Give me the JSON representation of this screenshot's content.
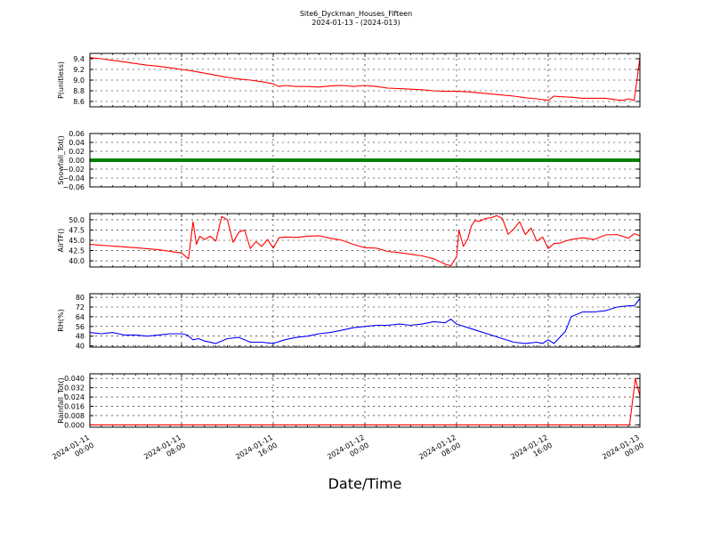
{
  "title_line1": "Site6_Dyckman_Houses_Fifteen",
  "title_line2": "2024-01-13 - (2024-013)",
  "xlabel": "Date/Time",
  "x_ticks": [
    {
      "x": 0,
      "line1": "2024-01-11",
      "line2": "00:00"
    },
    {
      "x": 8,
      "line1": "2024-01-11",
      "line2": "08:00"
    },
    {
      "x": 16,
      "line1": "2024-01-11",
      "line2": "16:00"
    },
    {
      "x": 24,
      "line1": "2024-01-12",
      "line2": "00:00"
    },
    {
      "x": 32,
      "line1": "2024-01-12",
      "line2": "08:00"
    },
    {
      "x": 40,
      "line1": "2024-01-12",
      "line2": "16:00"
    },
    {
      "x": 48,
      "line1": "2024-01-13",
      "line2": "00:00"
    }
  ],
  "chart_data": [
    {
      "type": "line",
      "ylabel": "P(unitless)",
      "color": "#ff0000",
      "ylim": [
        8.5,
        9.5
      ],
      "yticks": [
        8.6,
        8.8,
        9.0,
        9.2,
        9.4
      ],
      "ytick_labels": [
        "8.6",
        "8.8",
        "9.0",
        "9.2",
        "9.4"
      ],
      "xlim": [
        0,
        48
      ],
      "series": [
        {
          "x": [
            0,
            1,
            2,
            3,
            4,
            5,
            6,
            7,
            8,
            9,
            10,
            11,
            12,
            13,
            14,
            15,
            16,
            16.5,
            17,
            18,
            19,
            20,
            21,
            22,
            23,
            24,
            25,
            26,
            27,
            28,
            29,
            30,
            31,
            32,
            33,
            34,
            35,
            36,
            37,
            38,
            39,
            40,
            40.5,
            41,
            42,
            43,
            44,
            45,
            46,
            46.5,
            47,
            47.5,
            48
          ],
          "y": [
            9.42,
            9.4,
            9.37,
            9.34,
            9.31,
            9.28,
            9.26,
            9.23,
            9.2,
            9.17,
            9.13,
            9.09,
            9.05,
            9.02,
            9.0,
            8.97,
            8.93,
            8.88,
            8.9,
            8.88,
            8.88,
            8.87,
            8.89,
            8.9,
            8.88,
            8.9,
            8.88,
            8.85,
            8.84,
            8.83,
            8.82,
            8.8,
            8.79,
            8.79,
            8.78,
            8.76,
            8.74,
            8.72,
            8.7,
            8.67,
            8.65,
            8.62,
            8.7,
            8.69,
            8.68,
            8.66,
            8.66,
            8.66,
            8.63,
            8.62,
            8.65,
            8.62,
            9.42
          ]
        }
      ]
    },
    {
      "type": "line",
      "ylabel": "Snowfall_Tot()",
      "color": "#008000",
      "ylim": [
        -0.06,
        0.06
      ],
      "yticks": [
        -0.06,
        -0.04,
        -0.02,
        0.0,
        0.02,
        0.04,
        0.06
      ],
      "ytick_labels": [
        "−0.06",
        "−0.04",
        "−0.02",
        "0.00",
        "0.02",
        "0.04",
        "0.06"
      ],
      "xlim": [
        0,
        48
      ],
      "series": [
        {
          "x": [
            0,
            48
          ],
          "y": [
            0.0,
            0.0
          ]
        }
      ]
    },
    {
      "type": "line",
      "ylabel": "AirTF()",
      "color": "#ff0000",
      "ylim": [
        38.5,
        51.5
      ],
      "yticks": [
        40.0,
        42.5,
        45.0,
        47.5,
        50.0
      ],
      "ytick_labels": [
        "40.0",
        "42.5",
        "45.0",
        "47.5",
        "50.0"
      ],
      "xlim": [
        0,
        48
      ],
      "series": [
        {
          "x": [
            0,
            2,
            4,
            6,
            8,
            8.6,
            9,
            9.3,
            9.6,
            10,
            10.5,
            11,
            11.5,
            12,
            12.5,
            13,
            13.5,
            14,
            14.5,
            15,
            15.5,
            16,
            16.5,
            17,
            18,
            19,
            20,
            21,
            22,
            23,
            24,
            25,
            26,
            27,
            28,
            29,
            30,
            31,
            31.5,
            32,
            32.2,
            32.6,
            33,
            33.3,
            33.6,
            34,
            34.5,
            35,
            35.5,
            36,
            36.5,
            37,
            37.5,
            38,
            38.5,
            39,
            39.5,
            40,
            40.5,
            41,
            41.5,
            42,
            43,
            44,
            45,
            46,
            47,
            47.5,
            48
          ],
          "y": [
            44.0,
            43.6,
            43.2,
            42.7,
            41.9,
            40.5,
            49.5,
            44,
            46,
            45.2,
            46,
            44.8,
            50.8,
            50,
            44.5,
            47,
            47.5,
            43,
            44.7,
            43.5,
            45.2,
            43.1,
            45.6,
            45.8,
            45.7,
            46,
            46.1,
            45.5,
            45,
            44,
            43.2,
            43.1,
            42.3,
            42,
            41.6,
            41.2,
            40.5,
            39.2,
            38.8,
            41,
            47.5,
            43.5,
            45.5,
            48.5,
            49.8,
            49.6,
            50.3,
            50.5,
            51,
            50.3,
            46.5,
            47.8,
            49.5,
            46.4,
            48,
            44.8,
            45.8,
            43,
            44.2,
            44.3,
            44.8,
            45.2,
            45.6,
            45.2,
            46.3,
            46.4,
            45.5,
            46.6,
            46.1
          ]
        }
      ]
    },
    {
      "type": "line",
      "ylabel": "RH(%)",
      "color": "#0000ff",
      "ylim": [
        39,
        83
      ],
      "yticks": [
        40,
        48,
        56,
        64,
        72,
        80
      ],
      "ytick_labels": [
        "40",
        "48",
        "56",
        "64",
        "72",
        "80"
      ],
      "xlim": [
        0,
        48
      ],
      "series": [
        {
          "x": [
            0,
            1,
            2,
            3,
            4,
            5,
            6,
            7,
            8,
            8.5,
            9,
            9.5,
            10,
            11,
            12,
            13,
            14,
            15,
            16,
            17,
            18,
            19,
            20,
            21,
            22,
            23,
            24,
            25,
            26,
            27,
            28,
            29,
            30,
            31,
            31.5,
            32,
            33,
            34,
            35,
            36,
            37,
            38,
            39,
            39.5,
            40,
            40.5,
            41,
            41.5,
            42,
            43,
            44,
            45,
            46,
            47,
            47.5,
            48
          ],
          "y": [
            51,
            50,
            51,
            49,
            49,
            48,
            49,
            50,
            50,
            49,
            45,
            46,
            44,
            42,
            46,
            47,
            43,
            43,
            42,
            45,
            47,
            48,
            50,
            51,
            53,
            55,
            56,
            57,
            57,
            58,
            57,
            58,
            60,
            59,
            62,
            58,
            55,
            52,
            49,
            46,
            43,
            42,
            43,
            42,
            45,
            42,
            47,
            52,
            64,
            68,
            68,
            69,
            72,
            73,
            73,
            79
          ]
        }
      ]
    },
    {
      "type": "line",
      "ylabel": "Rainfall_Tot()",
      "color": "#ff0000",
      "ylim": [
        -0.002,
        0.044
      ],
      "yticks": [
        0.0,
        0.008,
        0.016,
        0.024,
        0.032,
        0.04
      ],
      "ytick_labels": [
        "0.000",
        "0.008",
        "0.016",
        "0.024",
        "0.032",
        "0.040"
      ],
      "xlim": [
        0,
        48
      ],
      "series": [
        {
          "x": [
            0,
            47.1,
            47.6,
            48
          ],
          "y": [
            0.0,
            0.0,
            0.04,
            0.025
          ]
        }
      ]
    }
  ]
}
